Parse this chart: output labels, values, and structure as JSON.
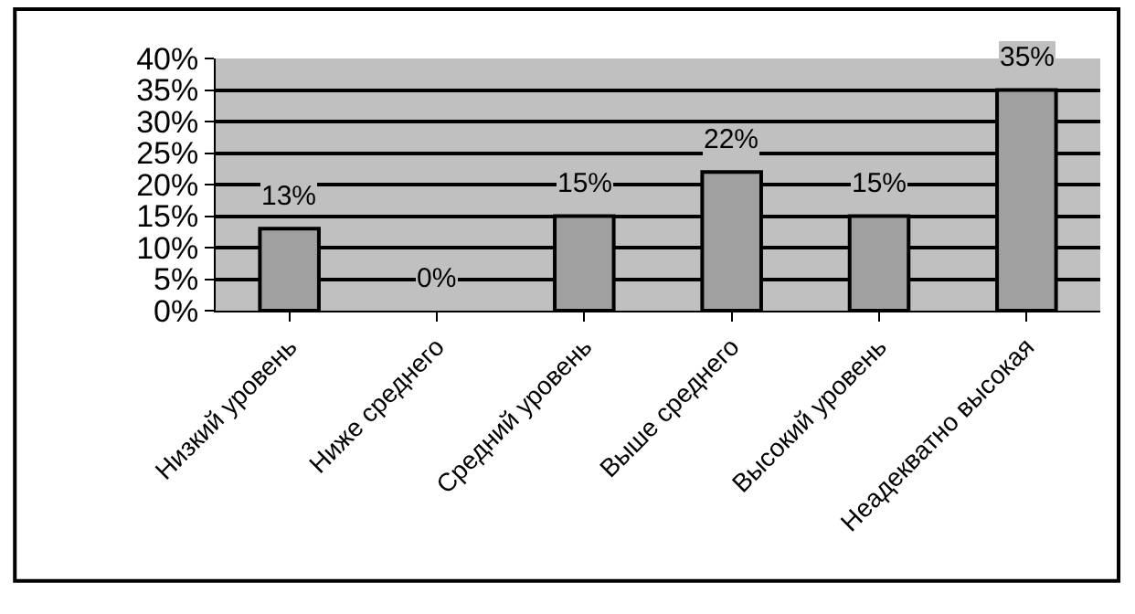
{
  "chart_data": {
    "type": "bar",
    "categories": [
      "Низкий уровень",
      "Ниже среднего",
      "Средний уровень",
      "Выше среднего",
      "Высокий уровень",
      "Неадекватно высокая"
    ],
    "values": [
      13,
      0,
      15,
      22,
      15,
      35
    ],
    "value_labels": [
      "13%",
      "0%",
      "15%",
      "22%",
      "15%",
      "35%"
    ],
    "color": "#a0a0a0",
    "ylim": [
      0,
      40
    ],
    "yticks": [
      {
        "value": 0,
        "label": "0%"
      },
      {
        "value": 5,
        "label": "5%"
      },
      {
        "value": 10,
        "label": "10%"
      },
      {
        "value": 15,
        "label": "15%"
      },
      {
        "value": 20,
        "label": "20%"
      },
      {
        "value": 25,
        "label": "25%"
      },
      {
        "value": 30,
        "label": "30%"
      },
      {
        "value": 35,
        "label": "35%"
      },
      {
        "value": 40,
        "label": "40%"
      }
    ],
    "grid": "y"
  }
}
